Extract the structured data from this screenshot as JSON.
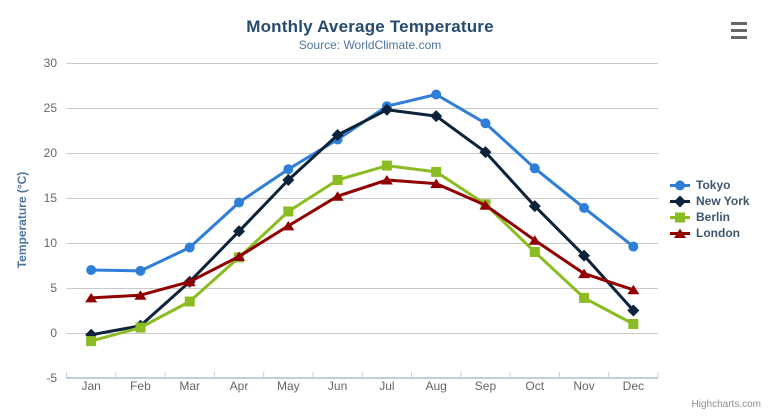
{
  "header": {
    "title": "Monthly Average Temperature",
    "subtitle": "Source: WorldClimate.com"
  },
  "credits": {
    "label": "Highcharts.com"
  },
  "icons": {
    "export_menu": "hamburger-icon"
  },
  "chart_data": {
    "type": "line",
    "title": "Monthly Average Temperature",
    "subtitle": "Source: WorldClimate.com",
    "categories": [
      "Jan",
      "Feb",
      "Mar",
      "Apr",
      "May",
      "Jun",
      "Jul",
      "Aug",
      "Sep",
      "Oct",
      "Nov",
      "Dec"
    ],
    "xlabel": "",
    "ylabel": "Temperature (°C)",
    "ylim": [
      -5,
      30
    ],
    "yticks": [
      -5,
      0,
      5,
      10,
      15,
      20,
      25,
      30
    ],
    "grid": true,
    "legend_position": "right",
    "colors": {
      "grid_line": "#C9C9C9",
      "axis_line": "#C0D0E0",
      "axis_label": "#666666",
      "axis_title": "#4d759e",
      "title": "#274b6d",
      "subtitle": "#4d759e",
      "legend_text": "#3E576F",
      "credits_text": "#909090"
    },
    "series": [
      {
        "name": "Tokyo",
        "color": "#2f7ed8",
        "marker": "circle",
        "values": [
          7.0,
          6.9,
          9.5,
          14.5,
          18.2,
          21.5,
          25.2,
          26.5,
          23.3,
          18.3,
          13.9,
          9.6
        ]
      },
      {
        "name": "New York",
        "color": "#0d233a",
        "marker": "diamond",
        "values": [
          -0.2,
          0.8,
          5.7,
          11.3,
          17.0,
          22.0,
          24.8,
          24.1,
          20.1,
          14.1,
          8.6,
          2.5
        ]
      },
      {
        "name": "Berlin",
        "color": "#8bbc21",
        "marker": "square",
        "values": [
          -0.9,
          0.6,
          3.5,
          8.4,
          13.5,
          17.0,
          18.6,
          17.9,
          14.3,
          9.0,
          3.9,
          1.0
        ]
      },
      {
        "name": "London",
        "color": "#910000",
        "marker": "triangle",
        "values": [
          3.9,
          4.2,
          5.7,
          8.5,
          11.9,
          15.2,
          17.0,
          16.6,
          14.2,
          10.3,
          6.6,
          4.8
        ]
      }
    ]
  }
}
